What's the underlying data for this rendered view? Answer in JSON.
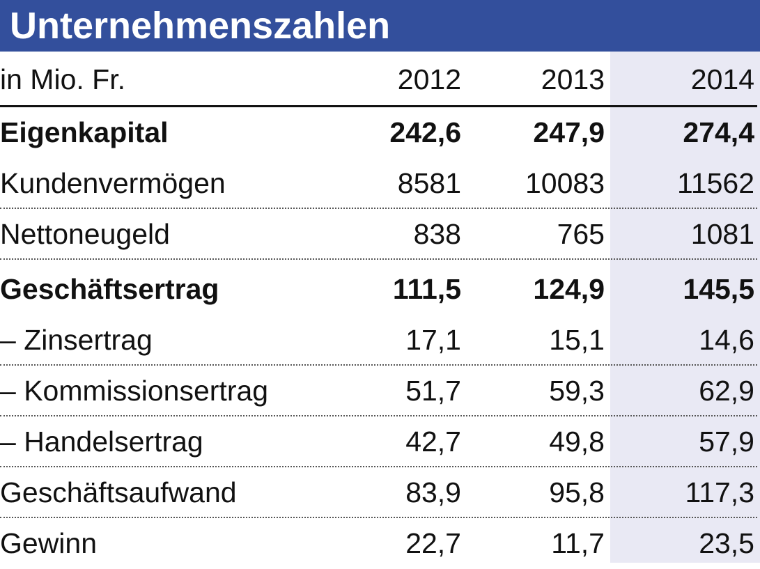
{
  "title": "Unternehmenszahlen",
  "chart_data": {
    "type": "table",
    "title": "Unternehmenszahlen",
    "unit_label": "in Mio. Fr.",
    "columns": [
      "2012",
      "2013",
      "2014"
    ],
    "highlighted_column": "2014",
    "rows": [
      {
        "label": "Eigenkapital",
        "values": [
          "242,6",
          "247,9",
          "274,4"
        ],
        "bold": true
      },
      {
        "label": "Kundenvermögen",
        "values": [
          "8581",
          "10083",
          "11562"
        ],
        "bold": false
      },
      {
        "label": "Nettoneugeld",
        "values": [
          "838",
          "765",
          "1081"
        ],
        "bold": false
      },
      {
        "label": "Geschäftsertrag",
        "values": [
          "111,5",
          "124,9",
          "145,5"
        ],
        "bold": true
      },
      {
        "label": "– Zinsertrag",
        "values": [
          "17,1",
          "15,1",
          "14,6"
        ],
        "bold": false
      },
      {
        "label": "– Kommissionsertrag",
        "values": [
          "51,7",
          "59,3",
          "62,9"
        ],
        "bold": false
      },
      {
        "label": "– Handelsertrag",
        "values": [
          "42,7",
          "49,8",
          "57,9"
        ],
        "bold": false
      },
      {
        "label": "Geschäftsaufwand",
        "values": [
          "83,9",
          "95,8",
          "117,3"
        ],
        "bold": false
      },
      {
        "label": "Gewinn",
        "values": [
          "22,7",
          "11,7",
          "23,5"
        ],
        "bold": false
      }
    ]
  },
  "colors": {
    "title_bar": "#334f9c",
    "highlight_column": "#e9e9f4",
    "text": "#111111"
  }
}
